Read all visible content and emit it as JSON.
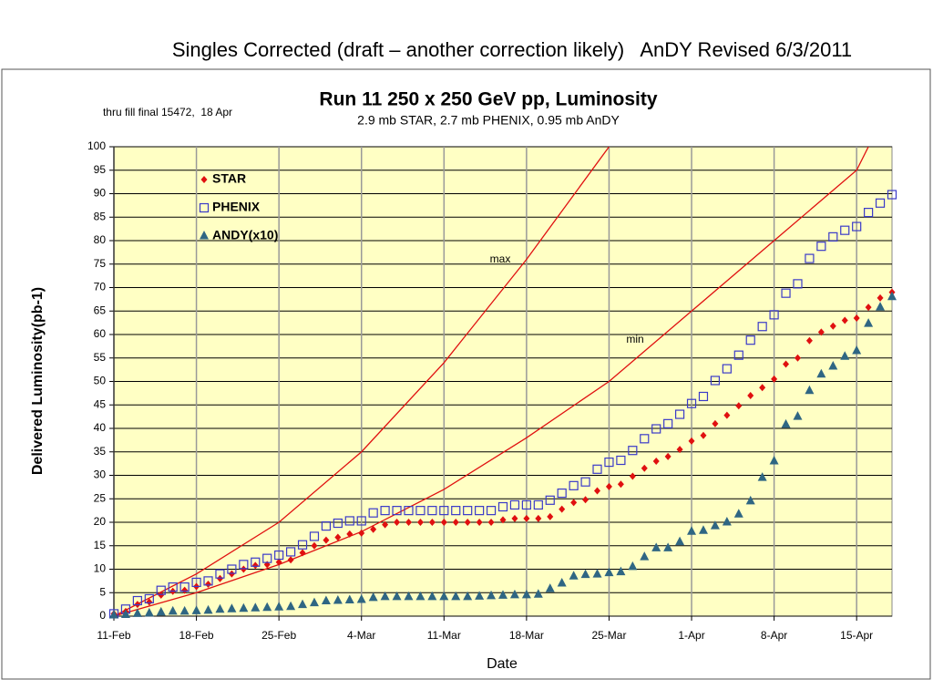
{
  "slide_title": "Singles Corrected (draft – another correction likely)   AnDY Revised 6/3/2011",
  "chart_data": {
    "type": "scatter",
    "title": "Run 11 250 x 250 GeV pp, Luminosity",
    "subtitle": "2.9 mb STAR, 2.7 mb PHENIX, 0.95 mb AnDY",
    "note": "thru fill final 15472,  18 Apr",
    "x_label": "Date",
    "y_label": "Delivered Luminosity(pb-1)",
    "x": [
      "11-Feb",
      "12-Feb",
      "13-Feb",
      "14-Feb",
      "15-Feb",
      "16-Feb",
      "17-Feb",
      "18-Feb",
      "19-Feb",
      "20-Feb",
      "21-Feb",
      "22-Feb",
      "23-Feb",
      "24-Feb",
      "25-Feb",
      "26-Feb",
      "27-Feb",
      "28-Feb",
      "1-Mar",
      "2-Mar",
      "3-Mar",
      "4-Mar",
      "5-Mar",
      "6-Mar",
      "7-Mar",
      "8-Mar",
      "9-Mar",
      "10-Mar",
      "11-Mar",
      "12-Mar",
      "13-Mar",
      "14-Mar",
      "15-Mar",
      "16-Mar",
      "17-Mar",
      "18-Mar",
      "19-Mar",
      "20-Mar",
      "21-Mar",
      "22-Mar",
      "23-Mar",
      "24-Mar",
      "25-Mar",
      "26-Mar",
      "27-Mar",
      "28-Mar",
      "29-Mar",
      "30-Mar",
      "31-Mar",
      "1-Apr",
      "2-Apr",
      "3-Apr",
      "4-Apr",
      "5-Apr",
      "6-Apr",
      "7-Apr",
      "8-Apr",
      "9-Apr",
      "10-Apr",
      "11-Apr",
      "12-Apr",
      "13-Apr",
      "14-Apr",
      "15-Apr",
      "16-Apr",
      "17-Apr",
      "18-Apr"
    ],
    "series": [
      {
        "name": "STAR",
        "color": "#e01010",
        "marker": "diamond",
        "values": [
          0.5,
          1,
          2.5,
          3,
          4.5,
          5.3,
          5.5,
          6.3,
          6.8,
          8,
          9,
          10,
          10.8,
          11,
          11.5,
          12,
          13.5,
          15,
          16.2,
          16.8,
          17.5,
          17.7,
          18.5,
          19.5,
          20,
          20,
          20,
          20,
          20,
          20,
          20,
          20,
          20,
          20.5,
          20.8,
          20.8,
          20.8,
          21.2,
          22.8,
          24.2,
          24.8,
          26.7,
          27.6,
          28.1,
          29.8,
          31.5,
          33,
          34,
          35.5,
          37.3,
          38.5,
          41,
          42.8,
          44.8,
          47,
          48.7,
          50.5,
          53.7,
          55,
          58.7,
          60.5,
          61.8,
          63,
          63.5,
          65.8,
          67.8,
          69
        ]
      },
      {
        "name": "PHENIX",
        "color": "#3a3ac8",
        "marker": "square",
        "values": [
          0.5,
          1.5,
          3.3,
          3.7,
          5.5,
          6.2,
          6.2,
          7.2,
          7.5,
          9,
          10,
          11,
          11.5,
          12.3,
          13,
          13.7,
          15.2,
          17,
          19.2,
          19.8,
          20.3,
          20.3,
          22,
          22.5,
          22.5,
          22.5,
          22.5,
          22.5,
          22.5,
          22.5,
          22.5,
          22.5,
          22.5,
          23.3,
          23.7,
          23.7,
          23.7,
          24.7,
          26.2,
          27.8,
          28.6,
          31.3,
          32.8,
          33.2,
          35.3,
          37.8,
          39.9,
          41,
          43,
          45.3,
          46.8,
          50.2,
          52.7,
          55.6,
          58.8,
          61.7,
          64.2,
          68.8,
          70.8,
          76.2,
          78.8,
          80.8,
          82.2,
          83,
          86,
          88,
          89.8
        ]
      },
      {
        "name": "ANDY(x10)",
        "color": "#2f6683",
        "marker": "triangle",
        "values": [
          0.2,
          0.3,
          0.5,
          0.6,
          0.8,
          1,
          1,
          1.1,
          1.2,
          1.4,
          1.5,
          1.6,
          1.7,
          1.8,
          1.9,
          2,
          2.4,
          2.8,
          3.2,
          3.3,
          3.4,
          3.5,
          3.9,
          4.1,
          4.1,
          4.1,
          4.1,
          4.1,
          4.1,
          4.1,
          4.1,
          4.2,
          4.3,
          4.4,
          4.5,
          4.5,
          4.6,
          5.8,
          7,
          8.5,
          8.8,
          8.9,
          9.2,
          9.4,
          10.5,
          12.6,
          14.5,
          14.5,
          15.8,
          18,
          18.2,
          19.2,
          20,
          21.7,
          24.5,
          29.5,
          33,
          40.8,
          42.5,
          48,
          51.5,
          53.2,
          55.3,
          56.5,
          62.3,
          65.8,
          68
        ]
      }
    ],
    "curves": [
      {
        "label": "max",
        "color": "#e01010",
        "x": [
          "11-Feb",
          "18-Feb",
          "25-Feb",
          "4-Mar",
          "11-Mar",
          "18-Mar",
          "25-Mar"
        ],
        "values": [
          0,
          9,
          20,
          35,
          54,
          76,
          100
        ]
      },
      {
        "label": "min",
        "color": "#e01010",
        "x": [
          "11-Feb",
          "18-Feb",
          "25-Feb",
          "4-Mar",
          "11-Mar",
          "18-Mar",
          "25-Mar",
          "1-Apr",
          "8-Apr",
          "15-Apr",
          "16-Apr"
        ],
        "values": [
          0,
          5,
          11,
          18,
          27,
          38,
          50,
          65,
          80,
          95,
          100
        ]
      }
    ],
    "xlim": [
      "11-Feb",
      "18-Apr"
    ],
    "xticks": [
      "11-Feb",
      "18-Feb",
      "25-Feb",
      "4-Mar",
      "11-Mar",
      "18-Mar",
      "25-Mar",
      "1-Apr",
      "8-Apr",
      "15-Apr"
    ],
    "ylim": [
      0,
      100
    ],
    "yticks": [
      0,
      5,
      10,
      15,
      20,
      25,
      30,
      35,
      40,
      45,
      50,
      55,
      60,
      65,
      70,
      75,
      80,
      85,
      90,
      95,
      100
    ],
    "grid": true,
    "legend": "upper left",
    "plot_background": "#ffffc4"
  }
}
